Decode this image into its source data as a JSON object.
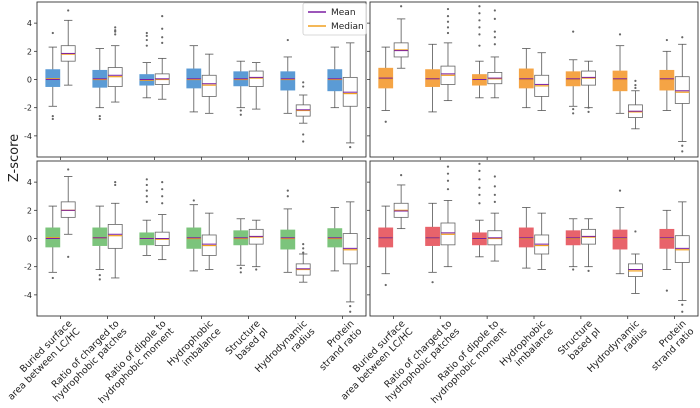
{
  "chart_data": {
    "type": "boxplot",
    "ylabel": "Z-score",
    "ylim": [
      -5.5,
      5.5
    ],
    "yticks": [
      -4,
      -2,
      0,
      2,
      4
    ],
    "categories": [
      [
        "Buried surface",
        "area between LC/HC"
      ],
      [
        "Ratio of charged to",
        "hydrophobic patches"
      ],
      [
        "Ratio of dipole to",
        "hydrophobic moment"
      ],
      [
        "Hydrophobic",
        "imbalance"
      ],
      [
        "Structure",
        "based pI"
      ],
      [
        "Hydrodynamic",
        "radius"
      ],
      [
        "Protein",
        "strand ratio"
      ]
    ],
    "legend": [
      {
        "label": "Mean",
        "color": "#7b1fa2"
      },
      {
        "label": "Median",
        "color": "#f0a020"
      }
    ],
    "panels": [
      {
        "position": "top-left",
        "color": "#5b9bd5",
        "groups": [
          {
            "filled": {
              "wl": -1.9,
              "q1": -0.5,
              "med": 0.05,
              "mean": 0.0,
              "q3": 0.7,
              "wh": 2.3,
              "out": [
                -2.6,
                -2.8,
                3.3
              ]
            },
            "open": {
              "wl": -0.4,
              "q1": 1.3,
              "med": 1.8,
              "mean": 1.85,
              "q3": 2.4,
              "wh": 4.2,
              "out": [
                4.9
              ]
            }
          },
          {
            "filled": {
              "wl": -2.0,
              "q1": -0.55,
              "med": 0.0,
              "mean": 0.05,
              "q3": 0.65,
              "wh": 2.2,
              "out": [
                -2.6,
                -2.8
              ]
            },
            "open": {
              "wl": -1.6,
              "q1": -0.5,
              "med": 0.2,
              "mean": 0.3,
              "q3": 0.85,
              "wh": 2.4,
              "out": [
                3.2,
                3.4,
                3.5,
                3.7
              ]
            }
          },
          {
            "filled": {
              "wl": -1.3,
              "q1": -0.4,
              "med": -0.05,
              "mean": 0.0,
              "q3": 0.35,
              "wh": 1.2,
              "out": [
                2.4,
                2.8,
                3.1,
                3.3
              ]
            },
            "open": {
              "wl": -1.4,
              "q1": -0.35,
              "med": 0.0,
              "mean": 0.05,
              "q3": 0.4,
              "wh": 1.5,
              "out": [
                2.6,
                3.0,
                3.6,
                4.5
              ]
            }
          },
          {
            "filled": {
              "wl": -2.3,
              "q1": -0.6,
              "med": 0.0,
              "mean": 0.05,
              "q3": 0.75,
              "wh": 2.4,
              "out": []
            },
            "open": {
              "wl": -2.4,
              "q1": -1.2,
              "med": -0.4,
              "mean": -0.3,
              "q3": 0.3,
              "wh": 1.8,
              "out": []
            }
          },
          {
            "filled": {
              "wl": -2.0,
              "q1": -0.45,
              "med": 0.0,
              "mean": 0.05,
              "q3": 0.55,
              "wh": 1.3,
              "out": [
                -2.2,
                -2.5
              ]
            },
            "open": {
              "wl": -2.1,
              "q1": -0.5,
              "med": 0.1,
              "mean": 0.15,
              "q3": 0.6,
              "wh": 1.2,
              "out": []
            }
          },
          {
            "filled": {
              "wl": -2.4,
              "q1": -0.75,
              "med": 0.0,
              "mean": 0.05,
              "q3": 0.55,
              "wh": 1.6,
              "out": [
                2.8
              ]
            },
            "open": {
              "wl": -3.1,
              "q1": -2.6,
              "med": -2.2,
              "mean": -2.15,
              "q3": -1.8,
              "wh": -1.1,
              "out": [
                -0.2,
                -0.5,
                -3.9,
                -4.4
              ]
            }
          },
          {
            "filled": {
              "wl": -2.0,
              "q1": -0.8,
              "med": 0.0,
              "mean": 0.05,
              "q3": 0.7,
              "wh": 2.3,
              "out": []
            },
            "open": {
              "wl": -4.5,
              "q1": -1.9,
              "med": -1.0,
              "mean": -0.9,
              "q3": 0.15,
              "wh": 2.6,
              "out": [
                -4.8
              ]
            }
          }
        ]
      },
      {
        "position": "top-right",
        "color": "#f5a445",
        "groups": [
          {
            "filled": {
              "wl": -2.2,
              "q1": -0.6,
              "med": 0.05,
              "mean": 0.1,
              "q3": 0.8,
              "wh": 2.3,
              "out": [
                -3.0
              ]
            },
            "open": {
              "wl": 0.8,
              "q1": 1.6,
              "med": 2.1,
              "mean": 2.05,
              "q3": 2.6,
              "wh": 4.3,
              "out": [
                5.2
              ]
            }
          },
          {
            "filled": {
              "wl": -2.3,
              "q1": -0.5,
              "med": 0.05,
              "mean": 0.05,
              "q3": 0.7,
              "wh": 2.5,
              "out": []
            },
            "open": {
              "wl": -1.5,
              "q1": -0.35,
              "med": 0.3,
              "mean": 0.4,
              "q3": 0.95,
              "wh": 2.6,
              "out": [
                3.3,
                3.7,
                4.1,
                4.5,
                5.0
              ]
            }
          },
          {
            "filled": {
              "wl": -1.3,
              "q1": -0.4,
              "med": 0.0,
              "mean": 0.0,
              "q3": 0.35,
              "wh": 1.3,
              "out": [
                2.4,
                3.2,
                3.7,
                4.2,
                4.7,
                5.2
              ]
            },
            "open": {
              "wl": -1.3,
              "q1": -0.3,
              "med": 0.05,
              "mean": 0.1,
              "q3": 0.5,
              "wh": 1.6,
              "out": [
                2.5,
                3.0,
                3.4,
                4.3,
                4.9
              ]
            }
          },
          {
            "filled": {
              "wl": -2.0,
              "q1": -0.6,
              "med": 0.0,
              "mean": 0.05,
              "q3": 0.75,
              "wh": 2.2,
              "out": []
            },
            "open": {
              "wl": -2.2,
              "q1": -1.2,
              "med": -0.45,
              "mean": -0.35,
              "q3": 0.3,
              "wh": 1.9,
              "out": []
            }
          },
          {
            "filled": {
              "wl": -1.9,
              "q1": -0.45,
              "med": 0.0,
              "mean": 0.05,
              "q3": 0.55,
              "wh": 1.4,
              "out": [
                -2.1,
                -2.4,
                3.4
              ]
            },
            "open": {
              "wl": -2.0,
              "q1": -0.4,
              "med": 0.1,
              "mean": 0.15,
              "q3": 0.6,
              "wh": 1.3,
              "out": [
                -2.0,
                -2.3
              ]
            }
          },
          {
            "filled": {
              "wl": -2.4,
              "q1": -0.8,
              "med": 0.0,
              "mean": 0.05,
              "q3": 0.6,
              "wh": 2.4,
              "out": [
                3.2
              ]
            },
            "open": {
              "wl": -3.5,
              "q1": -2.7,
              "med": -2.3,
              "mean": -2.25,
              "q3": -1.8,
              "wh": -0.8,
              "out": [
                -0.1,
                -0.4,
                -0.6
              ]
            }
          },
          {
            "filled": {
              "wl": -2.2,
              "q1": -0.75,
              "med": 0.0,
              "mean": 0.05,
              "q3": 0.65,
              "wh": 2.0,
              "out": [
                2.8
              ]
            },
            "open": {
              "wl": -4.4,
              "q1": -1.7,
              "med": -0.9,
              "mean": -0.8,
              "q3": 0.2,
              "wh": 2.5,
              "out": [
                -4.7,
                -5.1,
                3.0
              ]
            }
          }
        ]
      },
      {
        "position": "bottom-left",
        "color": "#7cc47c",
        "groups": [
          {
            "filled": {
              "wl": -2.4,
              "q1": -0.6,
              "med": 0.05,
              "mean": 0.0,
              "q3": 0.75,
              "wh": 2.3,
              "out": [
                -2.8
              ]
            },
            "open": {
              "wl": 0.3,
              "q1": 1.5,
              "med": 2.0,
              "mean": 2.0,
              "q3": 2.6,
              "wh": 4.4,
              "out": [
                4.9,
                -1.3
              ]
            }
          },
          {
            "filled": {
              "wl": -2.2,
              "q1": -0.5,
              "med": 0.05,
              "mean": 0.05,
              "q3": 0.75,
              "wh": 2.3,
              "out": [
                -2.6,
                -2.9
              ]
            },
            "open": {
              "wl": -2.8,
              "q1": -0.7,
              "med": 0.2,
              "mean": 0.3,
              "q3": 1.0,
              "wh": 2.5,
              "out": [
                3.8,
                4.0
              ]
            }
          },
          {
            "filled": {
              "wl": -1.2,
              "q1": -0.45,
              "med": 0.0,
              "mean": 0.0,
              "q3": 0.4,
              "wh": 1.3,
              "out": [
                2.6,
                3.0,
                3.4,
                3.8,
                4.2
              ]
            },
            "open": {
              "wl": -1.5,
              "q1": -0.5,
              "med": -0.05,
              "mean": 0.0,
              "q3": 0.45,
              "wh": 1.7,
              "out": [
                2.5,
                3.0,
                3.5,
                4.0
              ]
            }
          },
          {
            "filled": {
              "wl": -2.3,
              "q1": -0.7,
              "med": 0.0,
              "mean": 0.05,
              "q3": 0.75,
              "wh": 2.4,
              "out": [
                2.7
              ]
            },
            "open": {
              "wl": -2.2,
              "q1": -1.2,
              "med": -0.5,
              "mean": -0.4,
              "q3": 0.25,
              "wh": 1.8,
              "out": []
            }
          },
          {
            "filled": {
              "wl": -1.9,
              "q1": -0.45,
              "med": 0.0,
              "mean": 0.05,
              "q3": 0.55,
              "wh": 1.4,
              "out": [
                -2.1,
                -2.4
              ]
            },
            "open": {
              "wl": -2.0,
              "q1": -0.4,
              "med": 0.1,
              "mean": 0.15,
              "q3": 0.65,
              "wh": 1.3,
              "out": [
                -2.2
              ]
            }
          },
          {
            "filled": {
              "wl": -2.4,
              "q1": -0.75,
              "med": 0.0,
              "mean": 0.05,
              "q3": 0.6,
              "wh": 2.1,
              "out": [
                3.0,
                3.4
              ]
            },
            "open": {
              "wl": -3.1,
              "q1": -2.6,
              "med": -2.2,
              "mean": -2.15,
              "q3": -1.8,
              "wh": -1.1,
              "out": [
                -0.4,
                -0.7,
                -1.0
              ]
            }
          },
          {
            "filled": {
              "wl": -2.3,
              "q1": -0.6,
              "med": 0.0,
              "mean": 0.05,
              "q3": 0.7,
              "wh": 2.2,
              "out": []
            },
            "open": {
              "wl": -4.5,
              "q1": -1.8,
              "med": -0.8,
              "mean": -0.7,
              "q3": 0.35,
              "wh": 2.6,
              "out": [
                -4.8,
                -5.2
              ]
            }
          }
        ]
      },
      {
        "position": "bottom-right",
        "color": "#e8636b",
        "groups": [
          {
            "filled": {
              "wl": -2.5,
              "q1": -0.6,
              "med": 0.05,
              "mean": 0.05,
              "q3": 0.75,
              "wh": 2.3,
              "out": [
                -3.3
              ]
            },
            "open": {
              "wl": 0.7,
              "q1": 1.5,
              "med": 2.0,
              "mean": 1.95,
              "q3": 2.5,
              "wh": 3.8,
              "out": [
                4.5
              ]
            }
          },
          {
            "filled": {
              "wl": -2.4,
              "q1": -0.5,
              "med": 0.05,
              "mean": 0.05,
              "q3": 0.8,
              "wh": 2.5,
              "out": [
                -3.1
              ]
            },
            "open": {
              "wl": -2.0,
              "q1": -0.45,
              "med": 0.3,
              "mean": 0.4,
              "q3": 1.1,
              "wh": 2.7,
              "out": [
                3.5,
                4.1,
                4.6,
                5.1
              ]
            }
          },
          {
            "filled": {
              "wl": -1.3,
              "q1": -0.45,
              "med": 0.0,
              "mean": 0.0,
              "q3": 0.4,
              "wh": 1.3,
              "out": [
                2.5,
                3.1,
                3.6,
                4.2,
                4.8,
                5.3
              ]
            },
            "open": {
              "wl": -1.6,
              "q1": -0.45,
              "med": 0.0,
              "mean": 0.05,
              "q3": 0.55,
              "wh": 1.8,
              "out": [
                2.6,
                3.1,
                3.7,
                4.4
              ]
            }
          },
          {
            "filled": {
              "wl": -2.1,
              "q1": -0.6,
              "med": 0.0,
              "mean": 0.05,
              "q3": 0.75,
              "wh": 2.2,
              "out": []
            },
            "open": {
              "wl": -2.2,
              "q1": -1.1,
              "med": -0.5,
              "mean": -0.4,
              "q3": 0.25,
              "wh": 1.8,
              "out": []
            }
          },
          {
            "filled": {
              "wl": -2.0,
              "q1": -0.45,
              "med": 0.0,
              "mean": 0.05,
              "q3": 0.55,
              "wh": 1.4,
              "out": [
                -2.2
              ]
            },
            "open": {
              "wl": -2.0,
              "q1": -0.4,
              "med": 0.1,
              "mean": 0.15,
              "q3": 0.65,
              "wh": 1.4,
              "out": [
                -2.3
              ]
            }
          },
          {
            "filled": {
              "wl": -2.5,
              "q1": -0.75,
              "med": 0.0,
              "mean": 0.05,
              "q3": 0.6,
              "wh": 2.2,
              "out": [
                3.4
              ]
            },
            "open": {
              "wl": -3.9,
              "q1": -2.7,
              "med": -2.3,
              "mean": -2.2,
              "q3": -1.8,
              "wh": -1.1,
              "out": [
                0.5
              ]
            }
          },
          {
            "filled": {
              "wl": -2.2,
              "q1": -0.7,
              "med": 0.0,
              "mean": 0.05,
              "q3": 0.65,
              "wh": 2.0,
              "out": [
                -3.7
              ]
            },
            "open": {
              "wl": -4.4,
              "q1": -1.7,
              "med": -0.8,
              "mean": -0.7,
              "q3": 0.2,
              "wh": 2.6,
              "out": [
                -4.7,
                -5.2
              ]
            }
          }
        ]
      }
    ]
  }
}
